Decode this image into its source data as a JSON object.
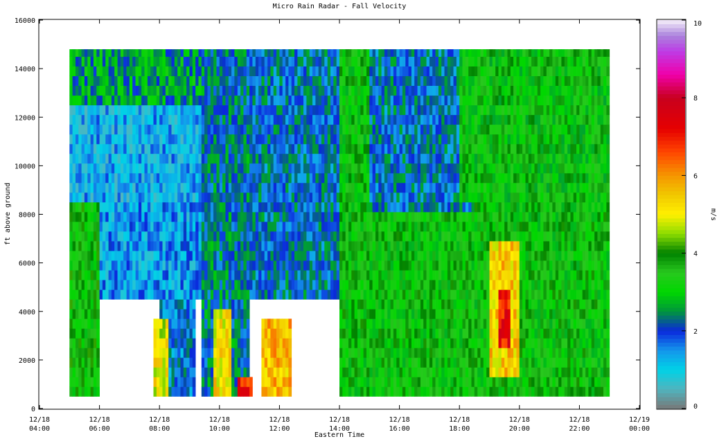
{
  "chart_data": {
    "type": "heatmap",
    "title": "Micro Rain Radar - Fall Velocity",
    "xlabel": "Eastern Time",
    "ylabel": "ft above ground",
    "colorbar_label": "m/s",
    "x_ticks": [
      [
        "12/18",
        "04:00"
      ],
      [
        "12/18",
        "06:00"
      ],
      [
        "12/18",
        "08:00"
      ],
      [
        "12/18",
        "10:00"
      ],
      [
        "12/18",
        "12:00"
      ],
      [
        "12/18",
        "14:00"
      ],
      [
        "12/18",
        "16:00"
      ],
      [
        "12/18",
        "18:00"
      ],
      [
        "12/18",
        "20:00"
      ],
      [
        "12/18",
        "22:00"
      ],
      [
        "12/19",
        "00:00"
      ]
    ],
    "x_range_hours": [
      4,
      24
    ],
    "data_time_range_hours": [
      5,
      23
    ],
    "y_ticks": [
      0,
      2000,
      4000,
      6000,
      8000,
      10000,
      12000,
      14000,
      16000
    ],
    "ylim": [
      0,
      16000
    ],
    "data_height_range_ft": [
      500,
      14800
    ],
    "colorbar_ticks": [
      0,
      2,
      4,
      6,
      8,
      10
    ],
    "zlim": [
      0,
      10
    ],
    "velocity_regions": [
      {
        "t": [
          5.0,
          6.0
        ],
        "h": [
          500,
          14800
        ],
        "v": 3.5
      },
      {
        "t": [
          5.0,
          10.0
        ],
        "h": [
          12500,
          14800
        ],
        "v": 2.6
      },
      {
        "t": [
          5.0,
          10.0
        ],
        "h": [
          8500,
          12500
        ],
        "v": 1.2
      },
      {
        "t": [
          6.0,
          9.5
        ],
        "h": [
          4500,
          8500
        ],
        "v": 1.4
      },
      {
        "t": [
          8.0,
          9.2
        ],
        "h": [
          500,
          4500
        ],
        "v": 1.8
      },
      {
        "t": [
          9.4,
          11.0
        ],
        "h": [
          500,
          14800
        ],
        "v": 2.2
      },
      {
        "t": [
          11.0,
          14.0
        ],
        "h": [
          4500,
          14800
        ],
        "v": 2.0
      },
      {
        "t": [
          14.0,
          23.0
        ],
        "h": [
          500,
          14800
        ],
        "v": 3.4
      },
      {
        "t": [
          15.0,
          18.5
        ],
        "h": [
          8000,
          14800
        ],
        "v": 2.0
      },
      {
        "t": [
          18.0,
          23.0
        ],
        "h": [
          8500,
          14800
        ],
        "v": 3.3
      }
    ],
    "velocity_cores": [
      {
        "t": [
          7.8,
          8.3
        ],
        "h": [
          500,
          3800
        ],
        "v": 5.0
      },
      {
        "t": [
          9.8,
          10.4
        ],
        "h": [
          500,
          4300
        ],
        "v": 5.2
      },
      {
        "t": [
          10.6,
          11.1
        ],
        "h": [
          500,
          1400
        ],
        "v": 7.0
      },
      {
        "t": [
          11.4,
          12.4
        ],
        "h": [
          500,
          3900
        ],
        "v": 5.6
      },
      {
        "t": [
          19.0,
          20.0
        ],
        "h": [
          1500,
          7000
        ],
        "v": 5.4
      },
      {
        "t": [
          19.3,
          19.7
        ],
        "h": [
          2600,
          5000
        ],
        "v": 7.2
      }
    ]
  }
}
